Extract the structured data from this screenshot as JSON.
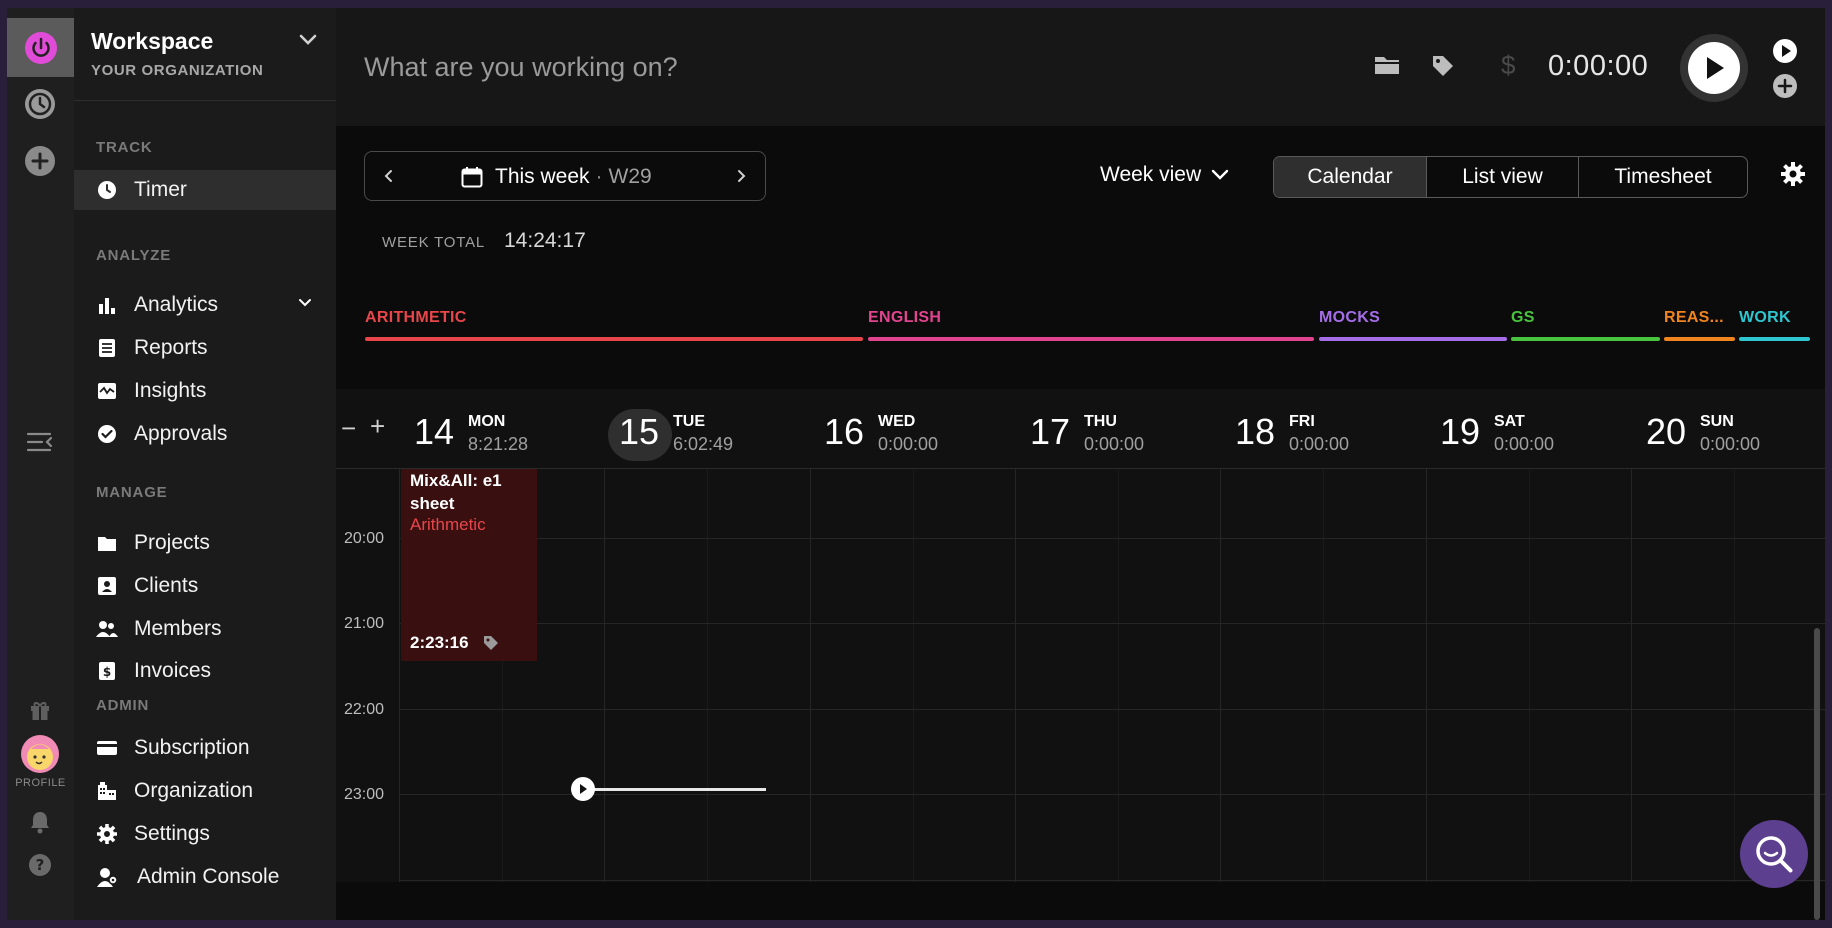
{
  "workspace": {
    "title": "Workspace",
    "subtitle": "YOUR ORGANIZATION"
  },
  "rail": {
    "profile_label": "PROFILE"
  },
  "sidebar": {
    "sections": {
      "track": "TRACK",
      "analyze": "ANALYZE",
      "manage": "MANAGE",
      "admin": "ADMIN"
    },
    "items": {
      "timer": "Timer",
      "analytics": "Analytics",
      "reports": "Reports",
      "insights": "Insights",
      "approvals": "Approvals",
      "projects": "Projects",
      "clients": "Clients",
      "members": "Members",
      "invoices": "Invoices",
      "subscription": "Subscription",
      "organization": "Organization",
      "settings": "Settings",
      "admin_console": "Admin Console"
    }
  },
  "timer": {
    "placeholder": "What are you working on?",
    "elapsed": "0:00:00",
    "currency_symbol": "$"
  },
  "week_nav": {
    "label": "This week",
    "separator": "·",
    "week": "W29"
  },
  "view_select": {
    "label": "Week view"
  },
  "view_tabs": [
    "Calendar",
    "List view",
    "Timesheet"
  ],
  "active_tab": "Calendar",
  "week_total": {
    "label": "WEEK TOTAL",
    "value": "14:24:17"
  },
  "projects": [
    {
      "name": "ARITHMETIC",
      "color": "#e8464a"
    },
    {
      "name": "ENGLISH",
      "color": "#e2448f"
    },
    {
      "name": "MOCKS",
      "color": "#a56ee8"
    },
    {
      "name": "GS",
      "color": "#49c43e"
    },
    {
      "name": "REAS...",
      "color": "#f0841e"
    },
    {
      "name": "WORK",
      "color": "#2ec6d0"
    }
  ],
  "zoom": {
    "out": "−",
    "in": "+"
  },
  "days": [
    {
      "num": "14",
      "name": "MON",
      "total": "8:21:28"
    },
    {
      "num": "15",
      "name": "TUE",
      "total": "6:02:49"
    },
    {
      "num": "16",
      "name": "WED",
      "total": "0:00:00"
    },
    {
      "num": "17",
      "name": "THU",
      "total": "0:00:00"
    },
    {
      "num": "18",
      "name": "FRI",
      "total": "0:00:00"
    },
    {
      "num": "19",
      "name": "SAT",
      "total": "0:00:00"
    },
    {
      "num": "20",
      "name": "SUN",
      "total": "0:00:00"
    }
  ],
  "hours": [
    "20:00",
    "21:00",
    "22:00",
    "23:00"
  ],
  "entry": {
    "title": "Mix&All: e1 sheet",
    "project": "Arithmetic",
    "duration": "2:23:16"
  }
}
